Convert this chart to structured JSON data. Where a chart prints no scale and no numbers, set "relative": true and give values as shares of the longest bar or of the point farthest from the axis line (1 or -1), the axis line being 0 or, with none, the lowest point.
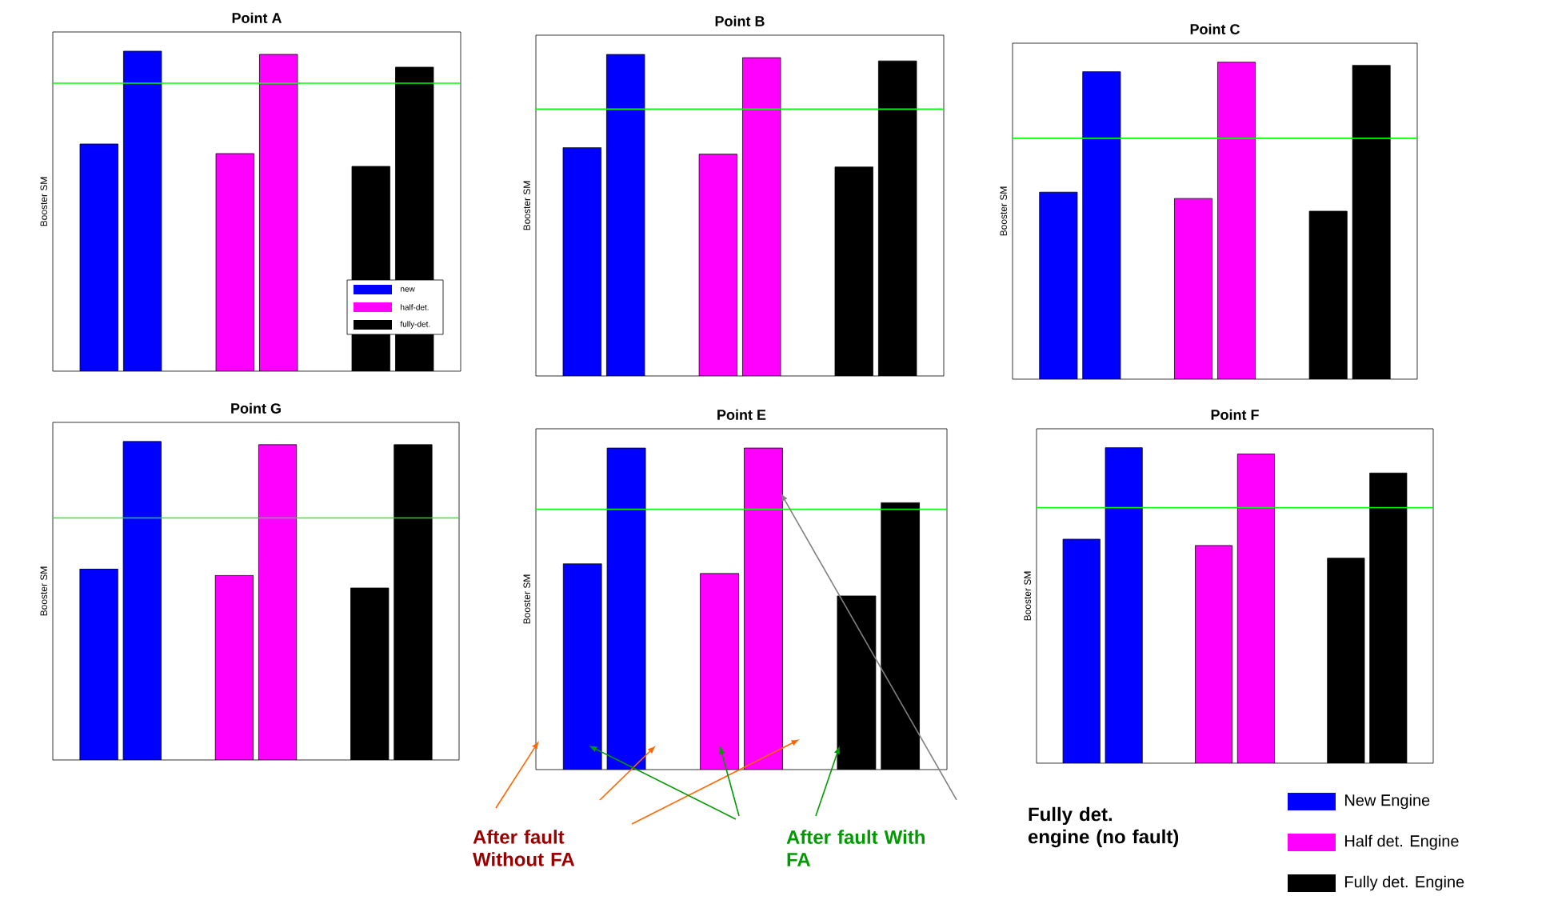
{
  "chart_data": [
    {
      "type": "bar",
      "title": "Point A",
      "ylabel": "Booster SM",
      "categories": [
        null,
        null,
        null
      ],
      "relative": true,
      "tick_labels": false,
      "annotations": [
        "new",
        "half-det.",
        "fully-det."
      ],
      "series": [
        {
          "colors": [
            "#0000ff",
            "#ff00ff",
            "#000000"
          ],
          "values": [
            0.71,
            0.68,
            0.64
          ]
        },
        {
          "colors": [
            "#0000ff",
            "#ff00ff",
            "#000000"
          ],
          "values": [
            1,
            0.99,
            0.95
          ]
        }
      ],
      "ref_lines": [
        {
          "axis": "y",
          "value": 0.9,
          "color": "#00ff00"
        }
      ]
    },
    {
      "type": "bar",
      "title": "Point B",
      "ylabel": "Booster SM",
      "categories": [
        null,
        null,
        null
      ],
      "relative": true,
      "tick_labels": false,
      "series": [
        {
          "colors": [
            "#0000ff",
            "#ff00ff",
            "#000000"
          ],
          "values": [
            0.71,
            0.69,
            0.65
          ]
        },
        {
          "colors": [
            "#0000ff",
            "#ff00ff",
            "#000000"
          ],
          "values": [
            1,
            0.99,
            0.98
          ]
        }
      ],
      "ref_lines": [
        {
          "axis": "y",
          "value": 0.83,
          "color": "#00ff00"
        }
      ]
    },
    {
      "type": "bar",
      "title": "Point C",
      "ylabel": "Booster SM",
      "categories": [
        null,
        null,
        null
      ],
      "relative": true,
      "tick_labels": false,
      "series": [
        {
          "colors": [
            "#0000ff",
            "#ff00ff",
            "#000000"
          ],
          "values": [
            0.59,
            0.57,
            0.53
          ]
        },
        {
          "colors": [
            "#0000ff",
            "#ff00ff",
            "#000000"
          ],
          "values": [
            0.97,
            1,
            0.99
          ]
        }
      ],
      "ref_lines": [
        {
          "axis": "y",
          "value": 0.76,
          "color": "#00ff00"
        }
      ]
    },
    {
      "type": "bar",
      "title": "Point G",
      "ylabel": "Booster SM",
      "categories": [
        null,
        null,
        null
      ],
      "relative": true,
      "tick_labels": false,
      "series": [
        {
          "colors": [
            "#0000ff",
            "#ff00ff",
            "#000000"
          ],
          "values": [
            0.6,
            0.58,
            0.54
          ]
        },
        {
          "colors": [
            "#0000ff",
            "#ff00ff",
            "#000000"
          ],
          "values": [
            1,
            0.99,
            0.99
          ]
        }
      ],
      "ref_lines": [
        {
          "axis": "y",
          "value": 0.76,
          "color": "#00ff00"
        }
      ]
    },
    {
      "type": "bar",
      "title": "Point E",
      "ylabel": "Booster SM",
      "categories": [
        null,
        null,
        null
      ],
      "relative": true,
      "tick_labels": false,
      "series": [
        {
          "colors": [
            "#0000ff",
            "#ff00ff",
            "#000000"
          ],
          "values": [
            0.64,
            0.61,
            0.54
          ]
        },
        {
          "colors": [
            "#0000ff",
            "#ff00ff",
            "#000000"
          ],
          "values": [
            1,
            1,
            0.83
          ]
        }
      ],
      "ref_lines": [
        {
          "axis": "y",
          "value": 0.81,
          "color": "#00ff00"
        }
      ],
      "annotations": [
        "After fault Without FA",
        "After fault With FA",
        "Fully det. engine (no fault)"
      ]
    },
    {
      "type": "bar",
      "title": "Point F",
      "ylabel": "Booster SM",
      "categories": [
        null,
        null,
        null
      ],
      "relative": true,
      "tick_labels": false,
      "annotations": [
        "New Engine",
        "Half det. Engine",
        "Fully det. Engine"
      ],
      "series": [
        {
          "colors": [
            "#0000ff",
            "#ff00ff",
            "#000000"
          ],
          "values": [
            0.71,
            0.69,
            0.65
          ]
        },
        {
          "colors": [
            "#0000ff",
            "#ff00ff",
            "#000000"
          ],
          "values": [
            1,
            0.98,
            0.92
          ]
        }
      ],
      "ref_lines": [
        {
          "axis": "y",
          "value": 0.81,
          "color": "#00ff00"
        }
      ]
    }
  ]
}
